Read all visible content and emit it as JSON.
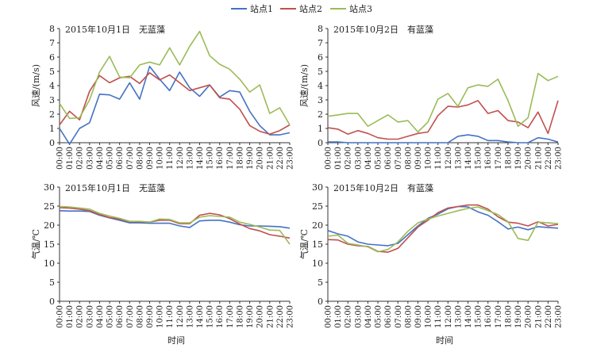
{
  "legend": {
    "items": [
      {
        "name": "站点1",
        "color": "#4472c4"
      },
      {
        "name": "站点2",
        "color": "#c0504d"
      },
      {
        "name": "站点3",
        "color": "#9bbb59"
      }
    ]
  },
  "xlabel": "时间",
  "chart_data": [
    {
      "type": "line",
      "title": "2015年10月1日　无蓝藻",
      "ylabel": "风速/(m/s)",
      "ylim": [
        0,
        8
      ],
      "yticks": [
        0,
        1,
        2,
        3,
        4,
        5,
        6,
        7,
        8
      ],
      "x": [
        "00:00",
        "01:00",
        "02:00",
        "03:00",
        "04:00",
        "05:00",
        "06:00",
        "07:00",
        "08:00",
        "09:00",
        "10:00",
        "11:00",
        "12:00",
        "13:00",
        "14:00",
        "15:00",
        "16:00",
        "17:00",
        "18:00",
        "19:00",
        "20:00",
        "21:00",
        "22:00",
        "23:00"
      ],
      "series": [
        {
          "name": "站点1",
          "values": [
            1.0,
            -0.1,
            1.0,
            1.4,
            3.4,
            3.35,
            3.05,
            4.2,
            3.05,
            5.35,
            4.45,
            3.65,
            4.95,
            3.85,
            3.25,
            4.05,
            3.2,
            3.65,
            3.55,
            2.2,
            1.2,
            0.55,
            0.55,
            0.7
          ]
        },
        {
          "name": "站点2",
          "values": [
            1.25,
            2.2,
            1.6,
            3.6,
            4.7,
            4.2,
            4.55,
            4.65,
            4.15,
            4.9,
            4.4,
            4.75,
            4.2,
            3.65,
            3.85,
            4.05,
            3.15,
            3.05,
            2.35,
            1.2,
            0.8,
            0.6,
            0.85,
            1.25
          ]
        },
        {
          "name": "站点3",
          "values": [
            2.75,
            1.7,
            1.75,
            3.0,
            4.95,
            6.05,
            4.6,
            4.55,
            5.45,
            5.65,
            5.45,
            6.65,
            5.45,
            6.75,
            7.8,
            6.1,
            5.5,
            5.15,
            4.45,
            3.55,
            4.05,
            2.05,
            2.45,
            1.25
          ]
        }
      ]
    },
    {
      "type": "line",
      "title": "2015年10月2日　有蓝藻",
      "ylabel": "风速/(m/s)",
      "ylim": [
        0,
        8
      ],
      "yticks": [
        0,
        1,
        2,
        3,
        4,
        5,
        6,
        7,
        8
      ],
      "x": [
        "00:00",
        "01:00",
        "02:00",
        "03:00",
        "04:00",
        "05:00",
        "06:00",
        "07:00",
        "08:00",
        "09:00",
        "10:00",
        "11:00",
        "12:00",
        "13:00",
        "14:00",
        "15:00",
        "16:00",
        "17:00",
        "18:00",
        "19:00",
        "20:00",
        "21:00",
        "22:00",
        "23:00"
      ],
      "series": [
        {
          "name": "站点1",
          "values": [
            0.05,
            0.05,
            0.0,
            0.0,
            0.0,
            0.0,
            0.0,
            0.0,
            0.0,
            0.0,
            0.0,
            0.0,
            0.0,
            0.45,
            0.55,
            0.45,
            0.15,
            0.15,
            0.05,
            0.0,
            0.0,
            0.35,
            0.25,
            0.05
          ]
        },
        {
          "name": "站点2",
          "values": [
            1.05,
            0.95,
            0.6,
            0.85,
            0.65,
            0.35,
            0.25,
            0.25,
            0.45,
            0.65,
            0.75,
            1.9,
            2.55,
            2.5,
            2.65,
            2.95,
            2.05,
            2.25,
            1.55,
            1.45,
            1.05,
            2.15,
            0.65,
            2.95
          ]
        },
        {
          "name": "站点3",
          "values": [
            1.85,
            1.95,
            2.05,
            2.05,
            1.15,
            1.55,
            1.95,
            1.45,
            1.55,
            0.75,
            1.45,
            3.05,
            3.45,
            2.55,
            3.85,
            4.05,
            3.95,
            4.45,
            2.95,
            1.15,
            1.75,
            4.85,
            4.35,
            4.65
          ]
        }
      ]
    },
    {
      "type": "line",
      "title": "2015年10月1日　无蓝藻",
      "ylabel": "气温/℃",
      "ylim": [
        0,
        30
      ],
      "yticks": [
        0,
        5,
        10,
        15,
        20,
        25,
        30
      ],
      "x": [
        "00:00",
        "01:00",
        "02:00",
        "03:00",
        "04:00",
        "05:00",
        "06:00",
        "07:00",
        "08:00",
        "09:00",
        "10:00",
        "11:00",
        "12:00",
        "13:00",
        "14:00",
        "15:00",
        "16:00",
        "17:00",
        "18:00",
        "19:00",
        "20:00",
        "21:00",
        "22:00",
        "23:00"
      ],
      "series": [
        {
          "name": "站点1",
          "values": [
            23.8,
            23.7,
            23.7,
            23.6,
            22.6,
            21.9,
            21.3,
            20.6,
            20.6,
            20.5,
            20.5,
            20.5,
            19.8,
            19.4,
            21.1,
            21.3,
            21.3,
            20.8,
            20.1,
            19.8,
            19.8,
            19.7,
            19.6,
            19.2
          ]
        },
        {
          "name": "站点2",
          "values": [
            24.6,
            24.5,
            24.2,
            23.8,
            22.8,
            22.0,
            21.6,
            20.9,
            20.9,
            20.8,
            21.3,
            21.3,
            20.4,
            20.4,
            22.6,
            23.1,
            22.7,
            21.7,
            20.3,
            19.1,
            18.5,
            17.5,
            17.1,
            16.6
          ]
        },
        {
          "name": "站点3",
          "values": [
            24.9,
            24.8,
            24.5,
            24.2,
            23.1,
            22.4,
            21.8,
            21.0,
            21.0,
            20.8,
            21.6,
            21.5,
            20.6,
            20.6,
            22.1,
            22.5,
            22.3,
            22.1,
            20.8,
            20.2,
            19.5,
            18.7,
            18.6,
            15.0
          ]
        }
      ]
    },
    {
      "type": "line",
      "title": "2015年10月2日　有蓝藻",
      "ylabel": "气温/℃",
      "ylim": [
        0,
        30
      ],
      "yticks": [
        0,
        5,
        10,
        15,
        20,
        25,
        30
      ],
      "x": [
        "00:00",
        "01:00",
        "02:00",
        "03:00",
        "04:00",
        "05:00",
        "06:00",
        "07:00",
        "08:00",
        "09:00",
        "10:00",
        "11:00",
        "12:00",
        "13:00",
        "14:00",
        "15:00",
        "16:00",
        "17:00",
        "18:00",
        "19:00",
        "20:00",
        "21:00",
        "22:00",
        "23:00"
      ],
      "series": [
        {
          "name": "站点1",
          "values": [
            18.6,
            17.7,
            17.1,
            15.6,
            15.0,
            14.8,
            14.6,
            15.2,
            17.5,
            19.8,
            21.8,
            22.9,
            24.3,
            24.9,
            24.8,
            23.5,
            22.6,
            20.9,
            19.0,
            19.5,
            18.8,
            19.6,
            19.4,
            19.2
          ]
        },
        {
          "name": "站点2",
          "values": [
            16.2,
            16.1,
            15.0,
            14.6,
            14.4,
            13.1,
            12.9,
            13.9,
            16.7,
            19.5,
            21.3,
            23.3,
            24.5,
            24.9,
            25.3,
            25.3,
            24.2,
            22.2,
            20.8,
            20.5,
            19.8,
            20.9,
            19.8,
            20.2
          ]
        },
        {
          "name": "站点3",
          "values": [
            17.1,
            17.4,
            15.2,
            14.8,
            14.3,
            13.0,
            13.6,
            15.6,
            18.4,
            20.6,
            21.6,
            22.4,
            23.1,
            23.8,
            24.4,
            24.8,
            23.8,
            22.8,
            20.9,
            16.5,
            16.0,
            20.8,
            20.6,
            20.4
          ]
        }
      ]
    }
  ]
}
